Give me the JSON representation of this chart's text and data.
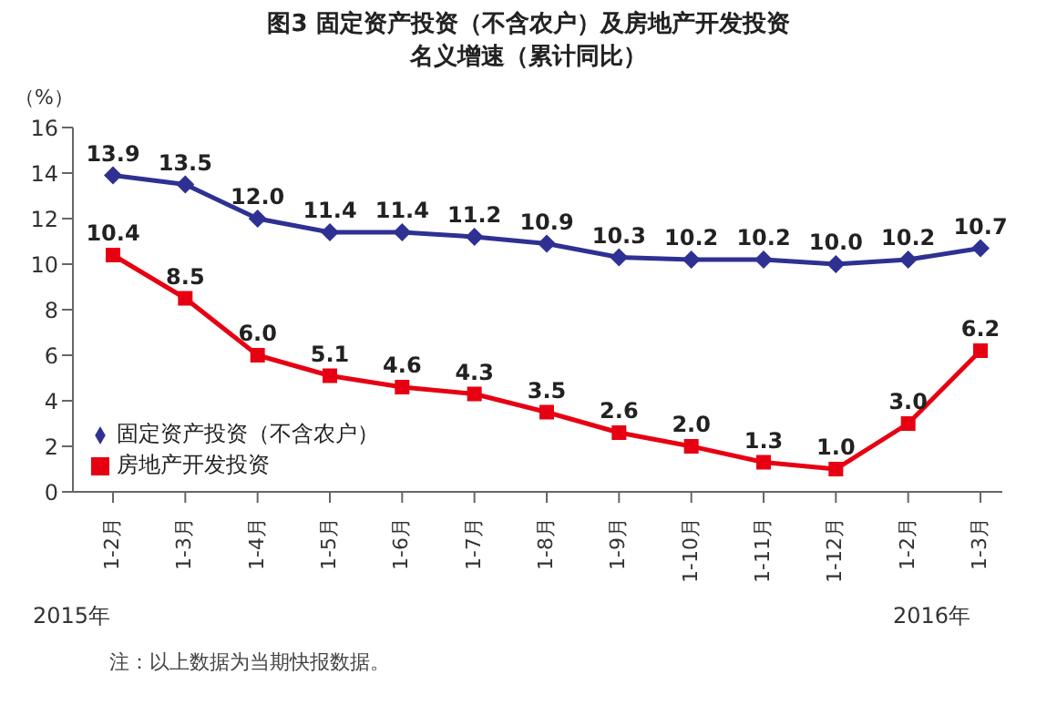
{
  "chart_data": {
    "type": "line",
    "title": "图3 固定资产投资（不含农户）及房地产开发投资",
    "subtitle": "名义增速（累计同比）",
    "ylabel": "（%）",
    "categories": [
      "1-2月",
      "1-3月",
      "1-4月",
      "1-5月",
      "1-6月",
      "1-7月",
      "1-8月",
      "1-9月",
      "1-10月",
      "1-11月",
      "1-12月",
      "1-2月",
      "1-3月"
    ],
    "series": [
      {
        "name": "固定资产投资（不含农户）",
        "color": "#2e3192",
        "marker": "diamond",
        "values": [
          13.9,
          13.5,
          12.0,
          11.4,
          11.4,
          11.2,
          10.9,
          10.3,
          10.2,
          10.2,
          10.0,
          10.2,
          10.7
        ],
        "value_labels": [
          "13.9",
          "13.5",
          "12.0",
          "11.4",
          "11.4",
          "11.2",
          "10.9",
          "10.3",
          "10.2",
          "10.2",
          "10.0",
          "10.2",
          "10.7"
        ]
      },
      {
        "name": "房地产开发投资",
        "color": "#e60012",
        "marker": "square",
        "values": [
          10.4,
          8.5,
          6.0,
          5.1,
          4.6,
          4.3,
          3.5,
          2.6,
          2.0,
          1.3,
          1.0,
          3.0,
          6.2
        ],
        "value_labels": [
          "10.4",
          "8.5",
          "6.0",
          "5.1",
          "4.6",
          "4.3",
          "3.5",
          "2.6",
          "2.0",
          "1.3",
          "1.0",
          "3.0",
          "6.2"
        ]
      }
    ],
    "ylim": [
      0,
      16
    ],
    "yticks": [
      0,
      2,
      4,
      6,
      8,
      10,
      12,
      14,
      16
    ],
    "grid": false,
    "legend": "bottom left",
    "line_style": "solid",
    "annotations": [
      "2015年",
      "2016年",
      "注：以上数据为当期快报数据。"
    ]
  }
}
